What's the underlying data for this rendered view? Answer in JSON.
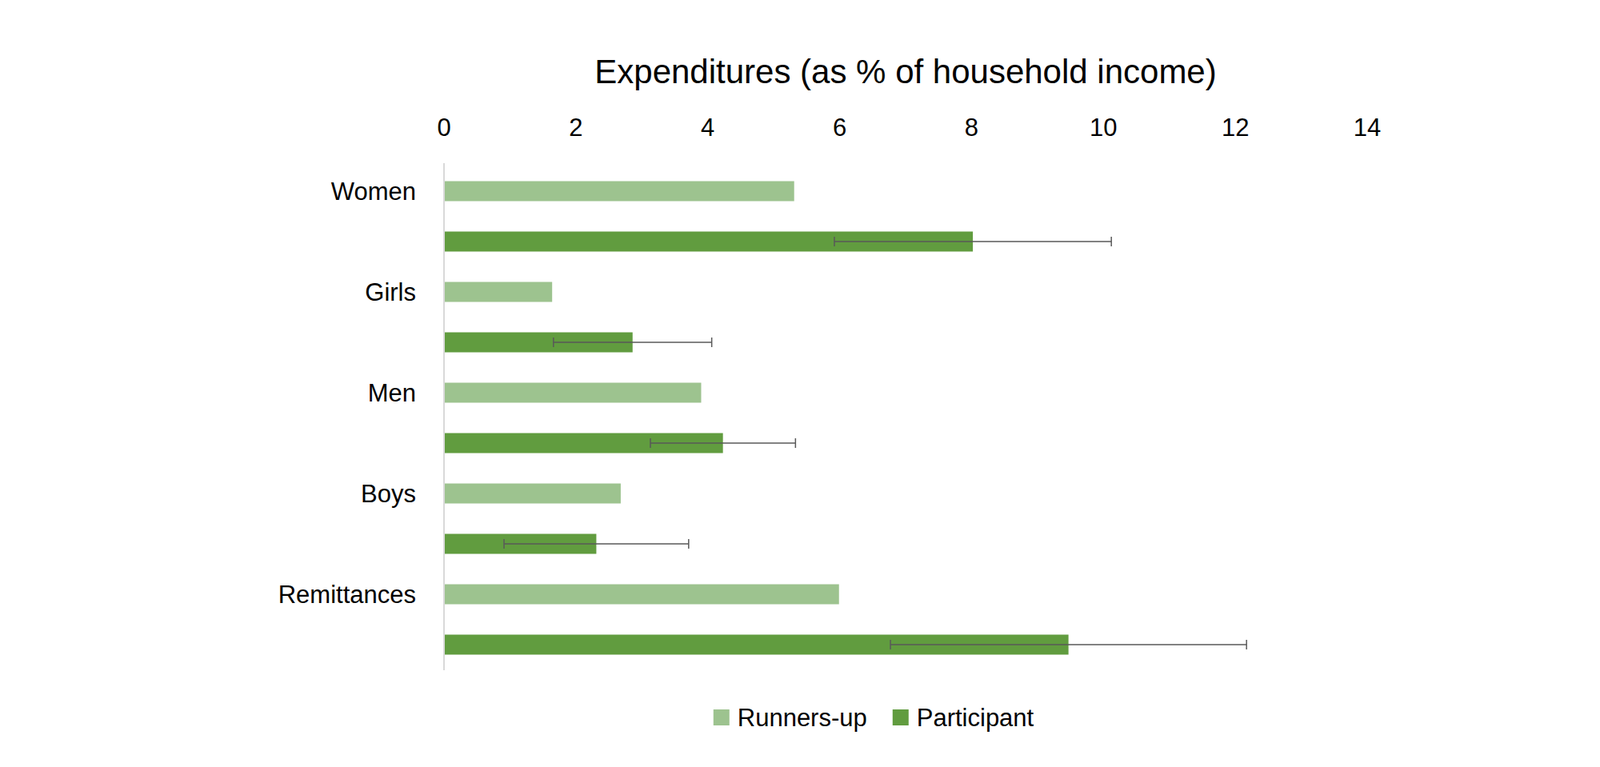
{
  "chart_data": {
    "type": "bar",
    "orientation": "horizontal",
    "title": "Expenditures (as % of household income)",
    "categories": [
      "Women",
      "Girls",
      "Men",
      "Boys",
      "Remittances"
    ],
    "series": [
      {
        "name": "Runners-up",
        "color": "#9dc38f",
        "values": [
          5.31,
          1.64,
          3.9,
          2.68,
          5.99
        ]
      },
      {
        "name": "Participant",
        "color": "#619c3f",
        "values": [
          8.02,
          2.86,
          4.23,
          2.31,
          9.47
        ],
        "errors": [
          2.1,
          1.2,
          1.1,
          1.4,
          2.7
        ]
      }
    ],
    "xlim": [
      0,
      14
    ],
    "xticks": [
      0,
      2,
      4,
      6,
      8,
      10,
      12,
      14
    ],
    "grid": false,
    "legend": "bottom"
  }
}
